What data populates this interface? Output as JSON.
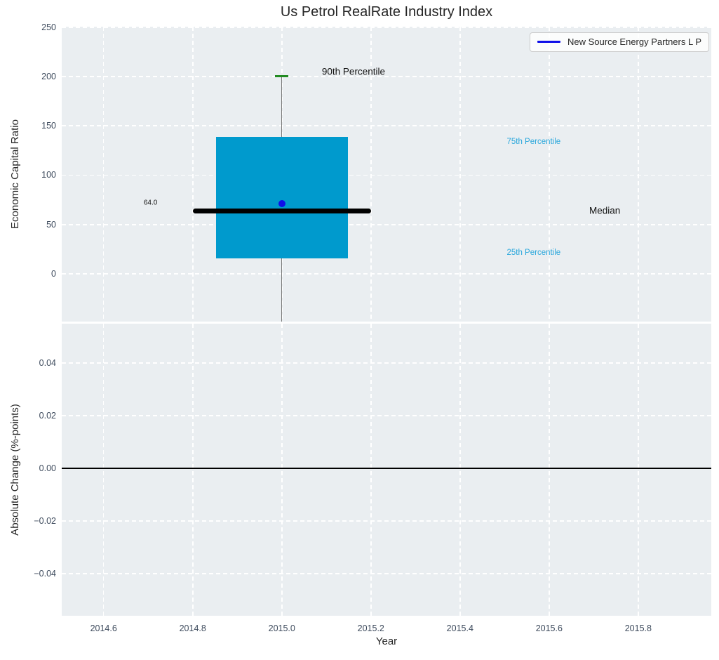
{
  "chart_data": [
    {
      "type": "boxplot",
      "title": "Us Petrol RealRate Industry Index",
      "ylabel": "Economic Capital Ratio",
      "xlabel": "",
      "xlim": [
        2014.506,
        2015.964
      ],
      "ylim": [
        -48.4,
        250.5
      ],
      "xtick_values": [
        2014.6,
        2014.8,
        2015.0,
        2015.2,
        2015.4,
        2015.6,
        2015.8
      ],
      "xtick_labels": [],
      "ytick_values": [
        0,
        50,
        100,
        150,
        200,
        250
      ],
      "ytick_labels": [
        "0",
        "50",
        "100",
        "150",
        "200",
        "250"
      ],
      "grid_y_values": [
        0,
        50,
        100,
        150,
        200,
        250
      ],
      "grid": "on",
      "legend": {
        "position": "upper right",
        "entries": [
          {
            "label": "New Source Energy Partners L P",
            "line_color": "#0f0fe8"
          }
        ]
      },
      "series": [
        {
          "name": "industry-box",
          "x": 2015.0,
          "median": 64.0,
          "q1": 16,
          "q3": 139,
          "p90": 200,
          "p10": "clipped below axis",
          "company_point": {
            "x": 2015.0,
            "y": 71.5
          },
          "box_half_width": 0.148,
          "median_half_width": 0.2,
          "cap_half_width": 0.015,
          "box_color": "#009acd",
          "median_color": "#000000",
          "whisker_color": "#7a7a7a",
          "cap_color": "#228b22",
          "point_color": "#0f0fe8"
        }
      ],
      "annotations": [
        {
          "text": "64.0",
          "x": 2014.69,
          "y": 72,
          "color": "#111111",
          "size": 10
        },
        {
          "text": "90th Percentile",
          "x": 2015.09,
          "y": 205,
          "color": "#111111",
          "size": 13.5
        },
        {
          "text": "75th Percentile",
          "x": 2015.505,
          "y": 134,
          "color": "#2aa7dc",
          "size": 11.5
        },
        {
          "text": "Median",
          "x": 2015.69,
          "y": 64,
          "color": "#111111",
          "size": 13.5
        },
        {
          "text": "25th Percentile",
          "x": 2015.505,
          "y": 21,
          "color": "#2aa7dc",
          "size": 11.5
        }
      ],
      "style": {
        "axes_bg": "#eaeef1",
        "grid_color": "#ffffff",
        "tick_color": "#3d4a5c"
      }
    },
    {
      "type": "line",
      "title": "",
      "ylabel": "Absolute Change (%-points)",
      "xlabel": "Year",
      "xlim": [
        2014.506,
        2015.964
      ],
      "ylim": [
        -0.056,
        0.0549
      ],
      "xtick_values": [
        2014.6,
        2014.8,
        2015.0,
        2015.2,
        2015.4,
        2015.6,
        2015.8
      ],
      "xtick_labels": [
        "2014.6",
        "2014.8",
        "2015.0",
        "2015.2",
        "2015.4",
        "2015.6",
        "2015.8"
      ],
      "ytick_values": [
        0.04,
        0.02,
        0.0,
        -0.02,
        -0.04
      ],
      "ytick_labels": [
        "0.04",
        "0.02",
        "0.00",
        "−0.02",
        "−0.04"
      ],
      "grid_y_values": [
        0.04,
        0.02,
        -0.02,
        -0.04
      ],
      "grid": "on",
      "zero_line": {
        "y": 0.0,
        "color": "#000000"
      },
      "series": [],
      "style": {
        "axes_bg": "#eaeef1",
        "grid_color": "#ffffff",
        "tick_color": "#3d4a5c"
      }
    }
  ]
}
